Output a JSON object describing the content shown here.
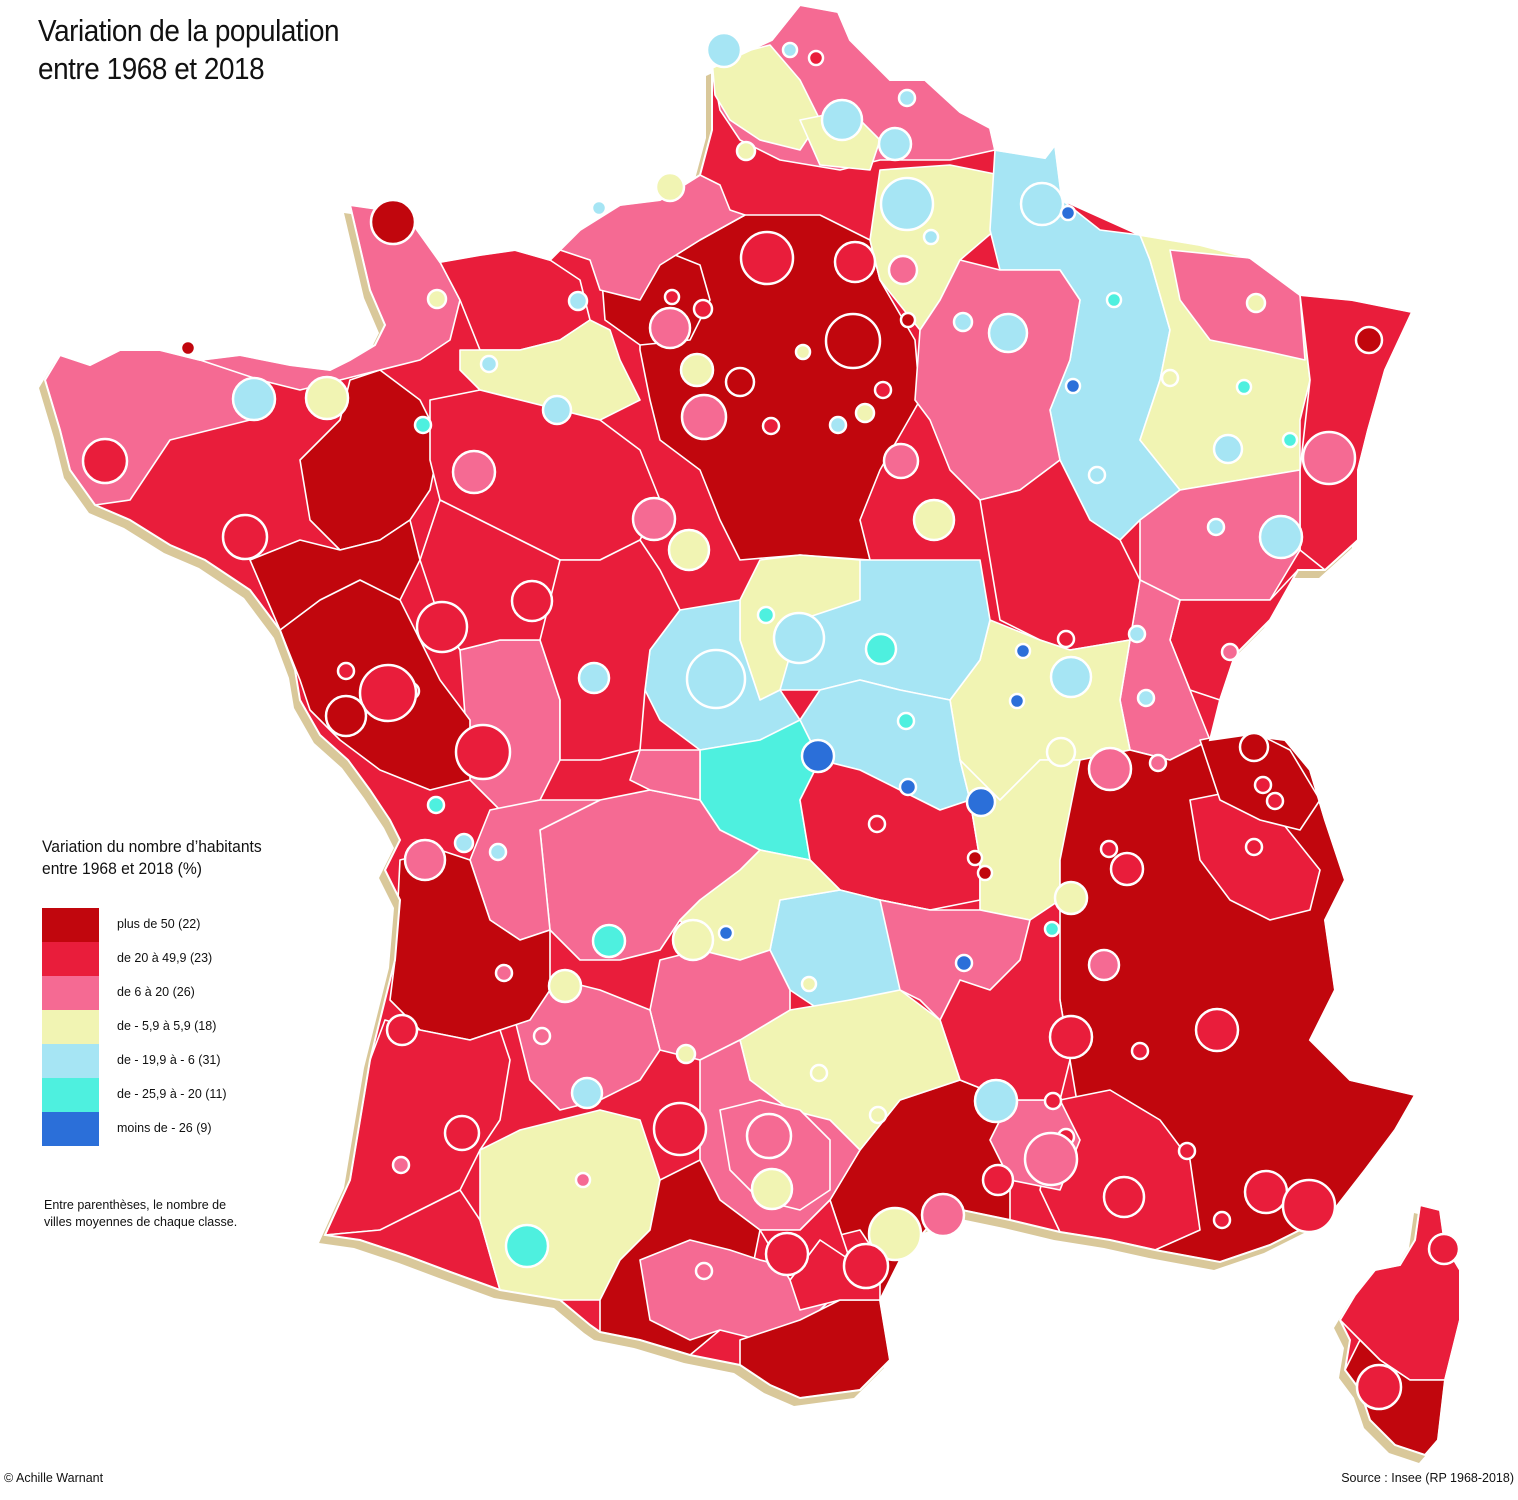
{
  "title": {
    "line1": "Variation de la population",
    "line2": "entre 1968 et 2018"
  },
  "legend": {
    "title_line1": "Variation du nombre d’habitants",
    "title_line2": "entre 1968 et 2018 (%)",
    "classes": [
      {
        "label": "plus de 50 (22)",
        "color": "#c1060d"
      },
      {
        "label": "de 20 à 49,9 (23)",
        "color": "#e91d3b"
      },
      {
        "label": "de 6 à 20 (26)",
        "color": "#f56a93"
      },
      {
        "label": "de - 5,9 à 5,9 (18)",
        "color": "#f1f4b3"
      },
      {
        "label": "de - 19,9 à - 6 (31)",
        "color": "#a6e5f4"
      },
      {
        "label": "de - 25,9 à - 20 (11)",
        "color": "#4ef0df"
      },
      {
        "label": "moins de - 26 (9)",
        "color": "#2b6fd9"
      }
    ]
  },
  "note": {
    "line1": "Entre parenthèses, le nombre de",
    "line2": "villes moyennes de chaque classe."
  },
  "footer": {
    "credit": "© Achille Warnant",
    "source": "Source : Insee (RP 1968-2018)"
  }
}
